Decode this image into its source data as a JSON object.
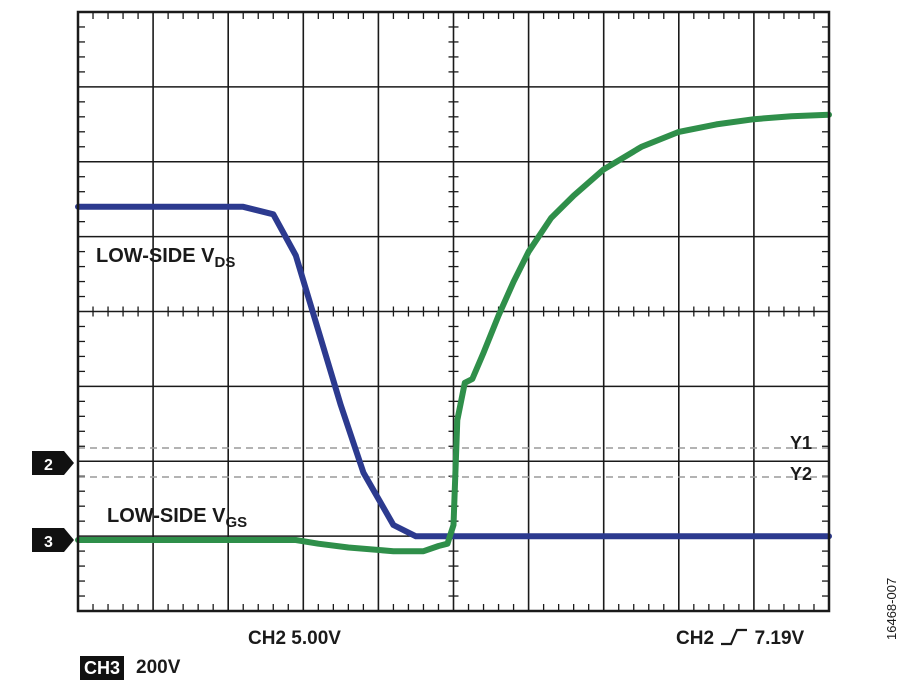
{
  "chart_data": {
    "type": "line",
    "annotations": [
      {
        "main": "LOW-SIDE V",
        "sub": "DS"
      },
      {
        "main": "LOW-SIDE V",
        "sub": "GS"
      }
    ],
    "cursors": [
      "Y1",
      "Y2"
    ],
    "channel_markers": [
      "2",
      "3"
    ],
    "scale_readout": "CH2 5.00V",
    "trigger_readout": {
      "prefix": "CH2",
      "value": "7.19V"
    },
    "ch3_readout": {
      "channel": "CH3",
      "scale": "200V"
    },
    "figure_id": "16468-007",
    "grid": {
      "divisions_x": 10,
      "divisions_y": 8,
      "on": true
    },
    "series": [
      {
        "color": "#2c3a8f",
        "x": [
          0,
          2.2,
          2.6,
          2.9,
          3.2,
          3.5,
          3.8,
          4.2,
          4.5,
          4.75,
          5.0,
          6,
          7,
          8,
          9,
          10
        ],
        "y": [
          4.45,
          4.45,
          4.35,
          3.8,
          2.8,
          1.8,
          0.9,
          0.2,
          0.05,
          0.05,
          0.05,
          0.05,
          0.05,
          0.05,
          0.05,
          0.05
        ]
      },
      {
        "color": "#2f8f4a",
        "x": [
          0,
          2.9,
          3.2,
          3.6,
          4.2,
          4.6,
          4.8,
          4.92,
          5.0,
          5.05,
          5.15,
          5.25,
          5.4,
          5.6,
          5.8,
          6.0,
          6.3,
          6.6,
          7.0,
          7.5,
          8.0,
          8.5,
          9.0,
          9.5,
          10
        ],
        "y": [
          0,
          0,
          -0.05,
          -0.1,
          -0.15,
          -0.15,
          -0.08,
          -0.05,
          0.2,
          1.6,
          2.1,
          2.15,
          2.5,
          3.0,
          3.45,
          3.85,
          4.3,
          4.6,
          4.95,
          5.25,
          5.45,
          5.55,
          5.62,
          5.66,
          5.68
        ]
      }
    ]
  }
}
